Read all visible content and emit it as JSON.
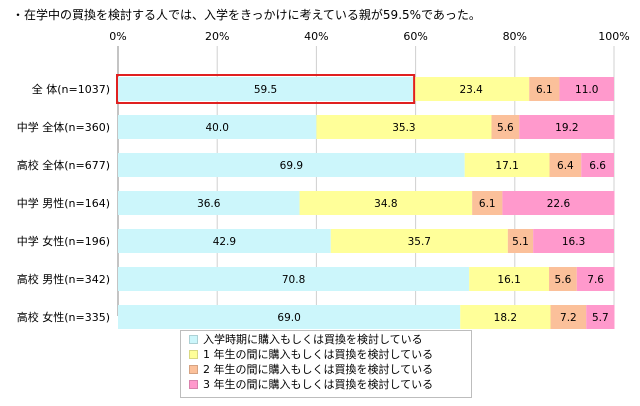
{
  "title": "・在学中の買換を検討する人では、入学をきっかけに考えている親が59.5%であった。",
  "colors": {
    "series": [
      "#ccf6fb",
      "#ffff99",
      "#fbc09a",
      "#ff99cc"
    ],
    "highlight": "#e02020",
    "gridline": "#d0d0d0",
    "axis": "#888888"
  },
  "chart_data": {
    "type": "bar",
    "orientation": "horizontal",
    "stacked": true,
    "xlim": [
      0,
      100
    ],
    "x_ticks": [
      "0%",
      "20%",
      "40%",
      "60%",
      "80%",
      "100%"
    ],
    "grid": true,
    "legend_position": "bottom",
    "highlighted_category": "全 体(n=1037)",
    "categories": [
      "全 体(n=1037)",
      "中学 全体(n=360)",
      "高校 全体(n=677)",
      "中学 男性(n=164)",
      "中学 女性(n=196)",
      "高校 男性(n=342)",
      "高校 女性(n=335)"
    ],
    "series": [
      {
        "name": "入学時期に購入もしくは買換を検討している",
        "values": [
          59.5,
          40.0,
          69.9,
          36.6,
          42.9,
          70.8,
          69.0
        ]
      },
      {
        "name": "1 年生の間に購入もしくは買換を検討している",
        "values": [
          23.4,
          35.3,
          17.1,
          34.8,
          35.7,
          16.1,
          18.2
        ]
      },
      {
        "name": "2 年生の間に購入もしくは買換を検討している",
        "values": [
          6.1,
          5.6,
          6.4,
          6.1,
          5.1,
          5.6,
          7.2
        ]
      },
      {
        "name": "3 年生の間に購入もしくは買換を検討している",
        "values": [
          11.0,
          19.2,
          6.6,
          22.6,
          16.3,
          7.6,
          5.7
        ]
      }
    ]
  }
}
